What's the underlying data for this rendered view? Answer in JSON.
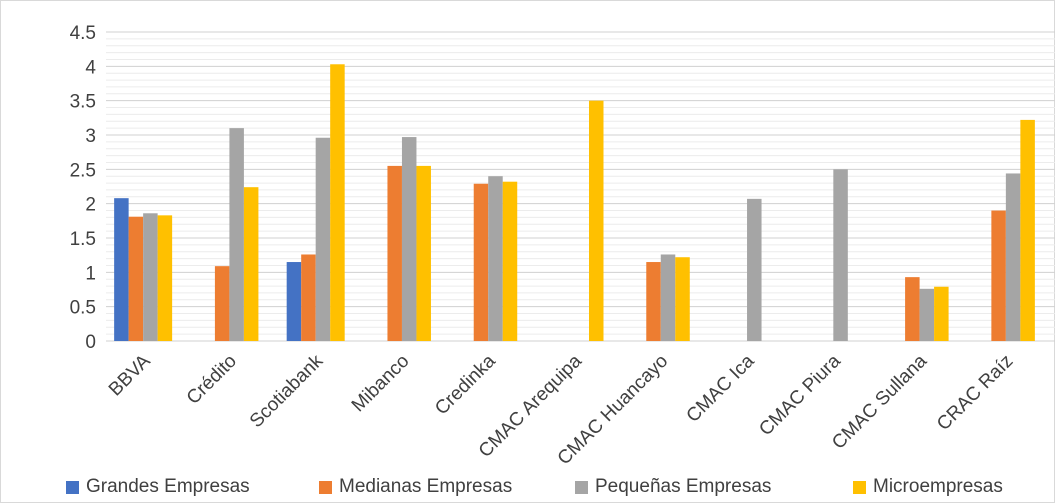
{
  "chart_data": {
    "type": "bar",
    "categories": [
      "BBVA",
      "Crédito",
      "Scotiabank",
      "Mibanco",
      "Credinka",
      "CMAC Arequipa",
      "CMAC Huancayo",
      "CMAC Ica",
      "CMAC Piura",
      "CMAC Sullana",
      "CRAC Raíz"
    ],
    "series": [
      {
        "name": "Grandes Empresas",
        "color": "#4472C4",
        "values": [
          2.08,
          null,
          1.15,
          null,
          null,
          null,
          null,
          null,
          null,
          null,
          null
        ]
      },
      {
        "name": "Medianas Empresas",
        "color": "#ED7D31",
        "values": [
          1.81,
          1.09,
          1.26,
          2.55,
          2.29,
          null,
          1.15,
          null,
          null,
          0.93,
          1.9
        ]
      },
      {
        "name": "Pequeñas Empresas",
        "color": "#A5A5A5",
        "values": [
          1.86,
          3.1,
          2.96,
          2.97,
          2.4,
          null,
          1.26,
          2.07,
          2.5,
          0.76,
          2.44
        ]
      },
      {
        "name": "Microempresas",
        "color": "#FFC000",
        "values": [
          1.83,
          2.24,
          4.03,
          2.55,
          2.32,
          3.5,
          1.22,
          null,
          null,
          0.79,
          3.22
        ]
      }
    ],
    "yticks": [
      "0",
      "0.5",
      "1",
      "1.5",
      "2",
      "2.5",
      "3",
      "3.5",
      "4",
      "4.5"
    ],
    "ylim": [
      0,
      4.5
    ],
    "grid": true,
    "legend": "bottom"
  }
}
